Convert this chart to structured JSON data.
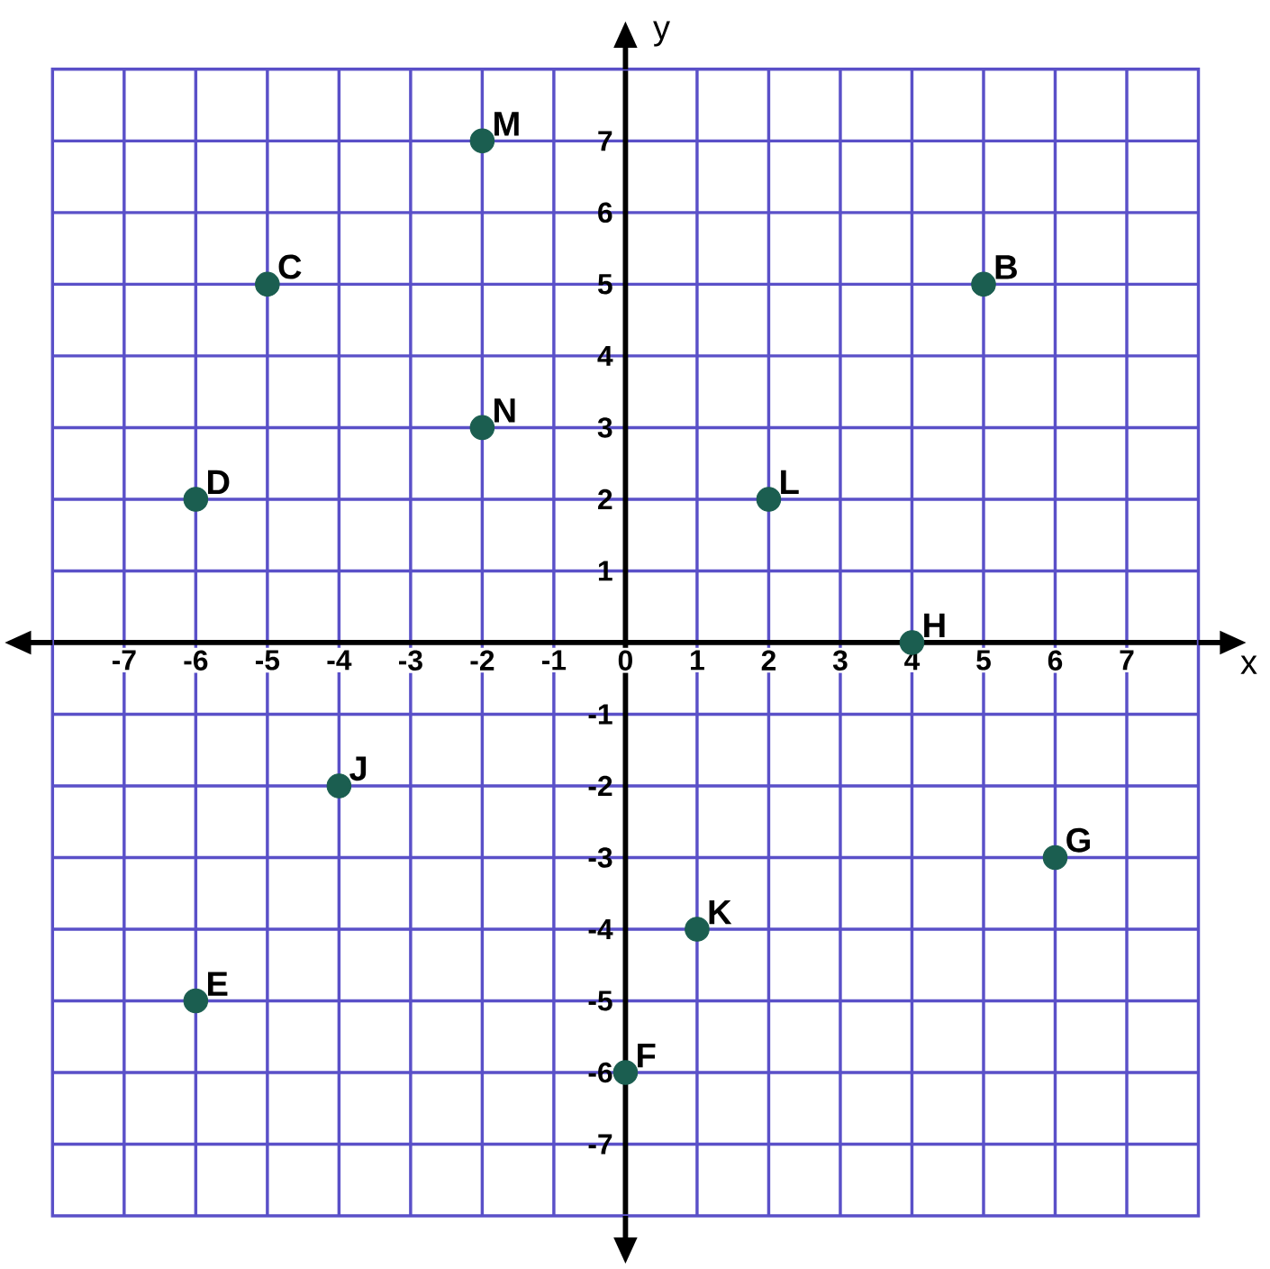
{
  "chart_data": {
    "type": "scatter",
    "xlabel": "x",
    "ylabel": "y",
    "x": [
      5,
      -5,
      -6,
      -6,
      0,
      6,
      4,
      -4,
      1,
      2,
      -2,
      -2
    ],
    "values": [
      5,
      5,
      2,
      -5,
      -6,
      -3,
      0,
      -2,
      -4,
      2,
      7,
      3
    ],
    "color": "#1b5e50",
    "marker": "circle",
    "grid": true,
    "xlim": [
      -8,
      8
    ],
    "ylim": [
      -8,
      8
    ],
    "xticks": [
      -7,
      -6,
      -5,
      -4,
      -3,
      -2,
      -1,
      0,
      1,
      2,
      3,
      4,
      5,
      6,
      7
    ],
    "yticks": [
      -7,
      -6,
      -5,
      -4,
      -3,
      -2,
      -1,
      1,
      2,
      3,
      4,
      5,
      6,
      7
    ],
    "annotations": [
      {
        "text": "B",
        "x": 5,
        "y": 5
      },
      {
        "text": "C",
        "x": -5,
        "y": 5
      },
      {
        "text": "D",
        "x": -6,
        "y": 2
      },
      {
        "text": "E",
        "x": -6,
        "y": -5
      },
      {
        "text": "F",
        "x": 0,
        "y": -6
      },
      {
        "text": "G",
        "x": 6,
        "y": -3
      },
      {
        "text": "H",
        "x": 4,
        "y": 0
      },
      {
        "text": "J",
        "x": -4,
        "y": -2
      },
      {
        "text": "K",
        "x": 1,
        "y": -4
      },
      {
        "text": "L",
        "x": 2,
        "y": 2
      },
      {
        "text": "M",
        "x": -2,
        "y": 7
      },
      {
        "text": "N",
        "x": -2,
        "y": 3
      }
    ]
  }
}
